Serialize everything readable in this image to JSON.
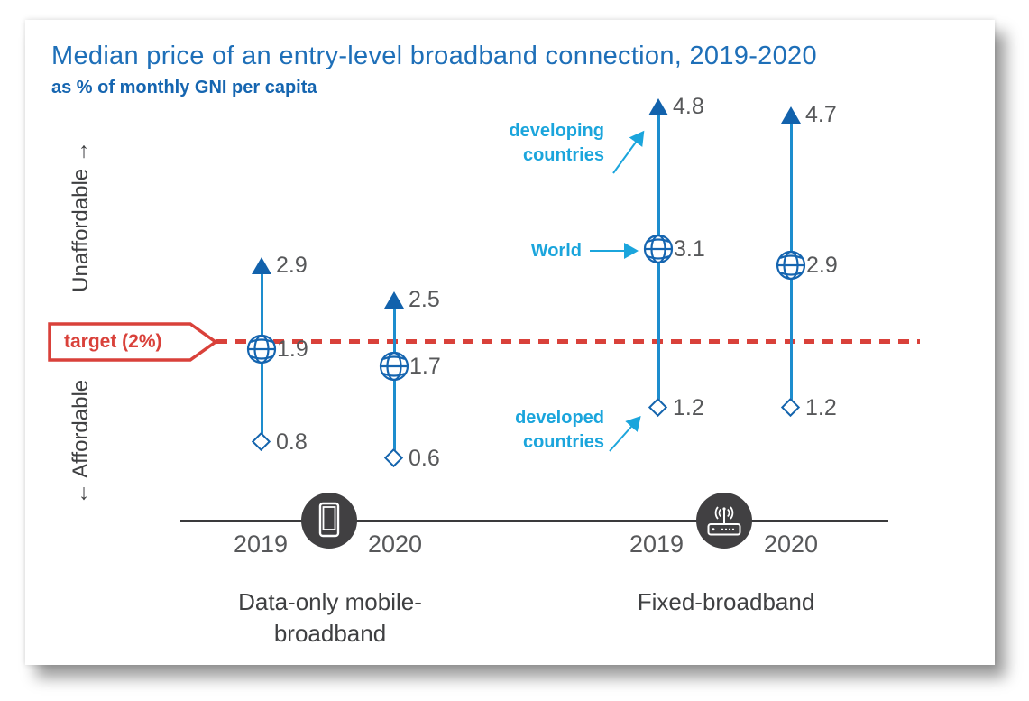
{
  "header": {
    "title": "Median price of an entry-level broadband connection, 2019-2020",
    "subtitle": "as % of monthly GNI per capita"
  },
  "axis_labels": {
    "unaffordable": "Unaffordable →",
    "affordable": "← Affordable"
  },
  "target": {
    "label": "target (2%)",
    "value": 2
  },
  "annotations": {
    "developing": "developing countries",
    "world": "World",
    "developed": "developed countries"
  },
  "groups": [
    {
      "label": "Data-only mobile-broadband",
      "icon": "smartphone-icon",
      "years": [
        "2019",
        "2020"
      ]
    },
    {
      "label": "Fixed-broadband",
      "icon": "router-icon",
      "years": [
        "2019",
        "2020"
      ]
    }
  ],
  "colors": {
    "title_blue": "#1e6fb8",
    "annotation_cyan": "#1ba5dc",
    "range_line_blue": "#1d8dce",
    "marker_dark_blue": "#1464ad",
    "target_red": "#d9413a",
    "text_gray": "#57585a",
    "axis_dark": "#3a3a3c",
    "icon_circle_gray": "#414042"
  },
  "chart_data": {
    "type": "scatter",
    "subtype": "vertical-range (dumbbell) chart with target line",
    "title": "Median price of an entry-level broadband connection, 2019-2020",
    "subtitle": "as % of monthly GNI per capita",
    "categories": [
      "Data-only mobile-broadband 2019",
      "Data-only mobile-broadband 2020",
      "Fixed-broadband 2019",
      "Fixed-broadband 2020"
    ],
    "series": [
      {
        "name": "developing countries",
        "marker": "filled-triangle-up",
        "color": "#1262ac",
        "values": [
          2.9,
          2.5,
          4.8,
          4.7
        ]
      },
      {
        "name": "World",
        "marker": "globe",
        "color": "#1565b0",
        "values": [
          1.9,
          1.7,
          3.1,
          2.9
        ]
      },
      {
        "name": "developed countries",
        "marker": "open-diamond",
        "color": "#1464ad",
        "values": [
          0.8,
          0.6,
          1.2,
          1.2
        ]
      }
    ],
    "target_line": {
      "label": "target (2%)",
      "value": 2,
      "style": "dashed",
      "color": "#d9413a"
    },
    "y_axis": {
      "unit": "% of monthly GNI per capita",
      "direction_up": "Unaffordable",
      "direction_down": "Affordable",
      "ylim": [
        0,
        5.2
      ]
    },
    "grid": false,
    "legend_position": "inline-annotations"
  }
}
